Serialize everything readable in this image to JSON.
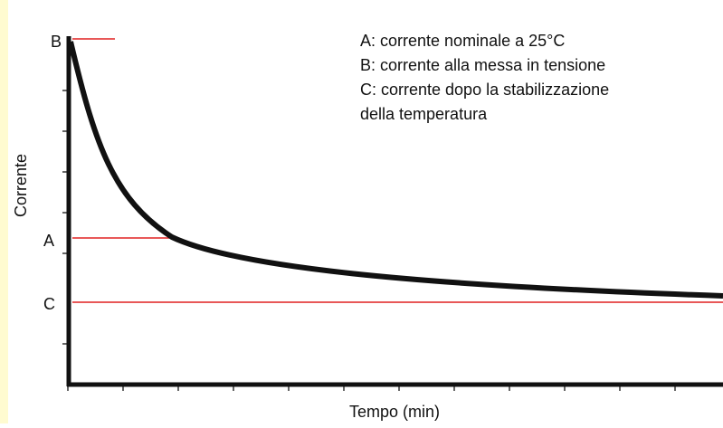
{
  "y_axis_label": "Corrente",
  "x_axis_label": "Tempo (min)",
  "levels": {
    "A": "A",
    "B": "B",
    "C": "C"
  },
  "legend": [
    "A: corrente nominale a 25°C",
    "B: corrente alla messa in tensione",
    "C: corrente dopo la stabilizzazione",
    "della temperatura"
  ]
}
